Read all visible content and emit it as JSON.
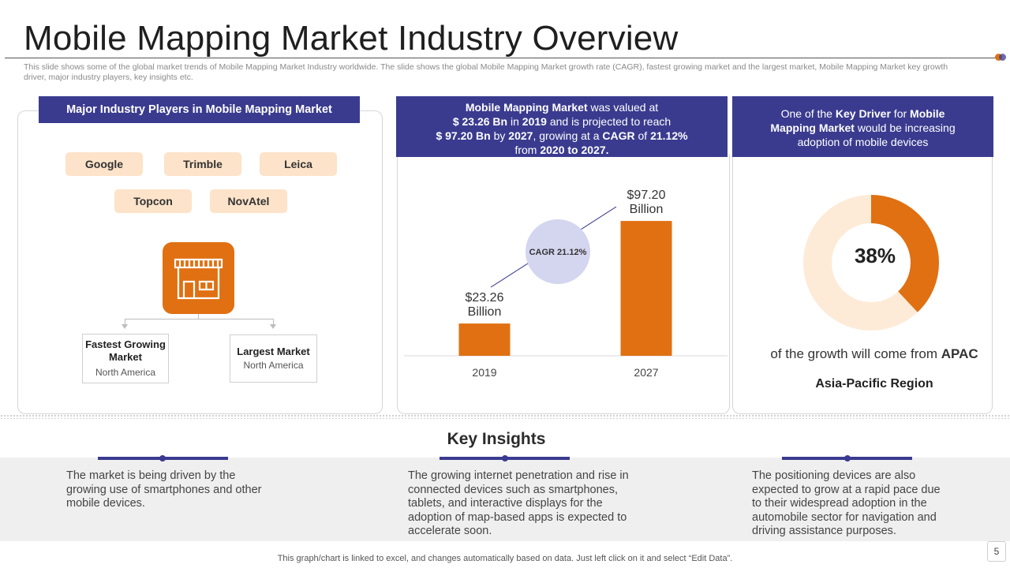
{
  "slide": {
    "title": "Mobile Mapping Market Industry Overview",
    "subtitle": "This slide shows some of the global market trends of Mobile Mapping Market Industry worldwide. The slide shows the global Mobile Mapping Market growth rate (CAGR), fastest growing market and the largest market, Mobile Mapping Market key growth driver, major industry players, key insights etc.",
    "page_number": "5",
    "footer_note": "This graph/chart is linked to excel,  and changes automatically based on data. Just left click on it and select “Edit Data”."
  },
  "colors": {
    "navy": "#3a3b8f",
    "orange": "#e07012",
    "peach": "#fde3c9",
    "cagr_circle": "#d4d5ef",
    "donut_track": "#fdebd8"
  },
  "players": {
    "header": "Major Industry Players in Mobile Mapping Market",
    "items": [
      "Google",
      "Trimble",
      "Leica",
      "Topcon",
      "NovAtel"
    ],
    "icon": "store-icon",
    "fastest": {
      "title_line1": "Fastest Growing",
      "title_line2": "Market",
      "value": "North America"
    },
    "largest": {
      "title": "Largest Market",
      "value": "North America"
    }
  },
  "market": {
    "h1_bold": "Mobile Mapping Market",
    "h1_rest": " was valued at",
    "h2_bold_a": "$ 23.26 Bn",
    "h2_mid": " in ",
    "h2_bold_b": "2019",
    "h2_rest": " and is projected to reach",
    "h3_bold_a": "$ 97.20 Bn",
    "h3_mid": " by ",
    "h3_bold_b": "2027",
    "h3_rest_a": ", growing at a ",
    "h3_bold_c": "CAGR",
    "h3_rest_b": " of ",
    "h3_bold_d": "21.12%",
    "h4_a": "from ",
    "h4_bold": "2020 to 2027."
  },
  "driver": {
    "l1_a": "One of the ",
    "l1_bold_a": "Key Driver",
    "l1_b": " for ",
    "l1_bold_b": "Mobile",
    "l2_bold": "Mapping Market",
    "l2_rest": " would be increasing",
    "l3": "adoption of mobile devices",
    "percent_label": "38%",
    "growth_text": "of the growth will come from ",
    "growth_bold": "APAC",
    "region": "Asia-Pacific Region"
  },
  "chart_data": {
    "type": "bar",
    "categories": [
      "2019",
      "2027"
    ],
    "values": [
      23.26,
      97.2
    ],
    "value_labels": [
      [
        "$23.26",
        "Billion"
      ],
      [
        "$97.20",
        "Billion"
      ]
    ],
    "cagr_label": "CAGR 21.12%",
    "ylim": [
      0,
      120
    ],
    "title": "",
    "xlabel": "",
    "ylabel": ""
  },
  "donut": {
    "percent": 38
  },
  "insights": {
    "title": "Key Insights",
    "items": [
      [
        "The market is being driven by the",
        "growing use of smartphones and other",
        "mobile devices."
      ],
      [
        "The growing internet penetration and rise in",
        "connected devices such as smartphones,",
        "tablets, and interactive displays for the",
        "adoption of map-based apps is expected to",
        "accelerate soon."
      ],
      [
        "The positioning devices are also",
        "expected to grow at a rapid pace due",
        "to their widespread adoption in the",
        "automobile sector for navigation and",
        "driving assistance purposes."
      ]
    ]
  }
}
